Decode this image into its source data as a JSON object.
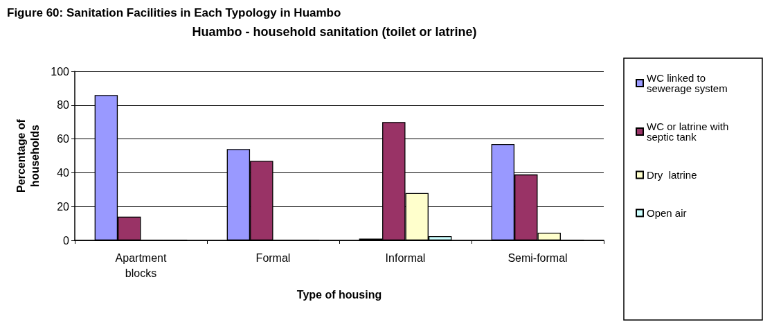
{
  "chart_data": {
    "type": "bar",
    "title": "Huambo - household sanitation (toilet or latrine)",
    "annotations": [
      "Figure 60: Sanitation Facilities in Each Typology in Huambo"
    ],
    "xlabel": "Type of housing",
    "ylabel": "Percentage of\nhouseholds",
    "categories": [
      "Apartment\nblocks",
      "Formal",
      "Informal",
      "Semi-formal"
    ],
    "series": [
      {
        "name": "WC linked to\nsewerage system",
        "color": "#9999ff",
        "values": [
          86,
          54,
          1,
          57
        ]
      },
      {
        "name": "WC or latrine with\nseptic tank",
        "color": "#993366",
        "values": [
          14,
          47,
          70,
          39
        ]
      },
      {
        "name": "Dry  latrine",
        "color": "#ffffcc",
        "values": [
          0,
          0,
          28,
          4.5
        ]
      },
      {
        "name": "Open air",
        "color": "#ccffff",
        "values": [
          0,
          0,
          2.5,
          0
        ]
      }
    ],
    "ylim": [
      0,
      100
    ],
    "yticks": [
      0,
      20,
      40,
      60,
      80,
      100
    ],
    "grid": "y",
    "legend": "right"
  }
}
